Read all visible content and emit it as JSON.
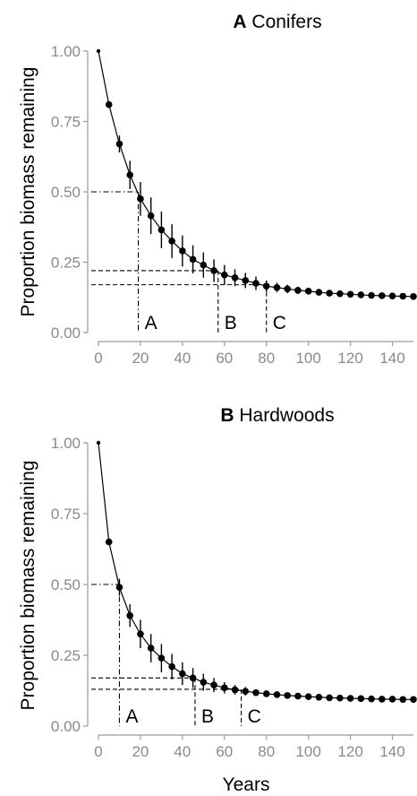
{
  "chart_data": [
    {
      "type": "line",
      "title_letter": "A",
      "title": "Conifers",
      "xlabel": "",
      "ylabel": "Proportion biomass remaining",
      "xlim": [
        0,
        150
      ],
      "ylim": [
        0,
        1
      ],
      "x_ticks": [
        0,
        20,
        40,
        60,
        80,
        100,
        120,
        140
      ],
      "y_ticks": [
        "0.00",
        "0.25",
        "0.50",
        "0.75",
        "1.00"
      ],
      "x": [
        0,
        5,
        10,
        15,
        20,
        25,
        30,
        35,
        40,
        45,
        50,
        55,
        60,
        65,
        70,
        75,
        80,
        85,
        90,
        95,
        100,
        105,
        110,
        115,
        120,
        125,
        130,
        135,
        140,
        145,
        150
      ],
      "y": [
        1.0,
        0.81,
        0.67,
        0.56,
        0.475,
        0.415,
        0.365,
        0.325,
        0.29,
        0.26,
        0.24,
        0.22,
        0.205,
        0.195,
        0.185,
        0.175,
        0.165,
        0.16,
        0.155,
        0.15,
        0.147,
        0.143,
        0.14,
        0.138,
        0.136,
        0.134,
        0.132,
        0.131,
        0.13,
        0.129,
        0.128
      ],
      "error": [
        0,
        0.01,
        0.03,
        0.05,
        0.06,
        0.065,
        0.065,
        0.06,
        0.055,
        0.05,
        0.045,
        0.04,
        0.035,
        0.03,
        0.027,
        0.024,
        0.02,
        0.017,
        0.015,
        0.013,
        0.011,
        0.01,
        0.008,
        0.007,
        0.006,
        0.005,
        0.004,
        0.003,
        0.003,
        0.002,
        0.002
      ],
      "reference_lines": [
        {
          "label": "A",
          "x": 19,
          "y": 0.5,
          "style": "dashdot"
        },
        {
          "label": "B",
          "x": 57,
          "y": 0.22,
          "style": "dash"
        },
        {
          "label": "C",
          "x": 80,
          "y": 0.17,
          "style": "dash"
        }
      ]
    },
    {
      "type": "line",
      "title_letter": "B",
      "title": "Hardwoods",
      "xlabel": "Years",
      "ylabel": "Proportion biomass remaining",
      "xlim": [
        0,
        150
      ],
      "ylim": [
        0,
        1
      ],
      "x_ticks": [
        0,
        20,
        40,
        60,
        80,
        100,
        120,
        140
      ],
      "y_ticks": [
        "0.00",
        "0.25",
        "0.50",
        "0.75",
        "1.00"
      ],
      "x": [
        0,
        5,
        10,
        15,
        20,
        25,
        30,
        35,
        40,
        45,
        50,
        55,
        60,
        65,
        70,
        75,
        80,
        85,
        90,
        95,
        100,
        105,
        110,
        115,
        120,
        125,
        130,
        135,
        140,
        145,
        150
      ],
      "y": [
        1.0,
        0.65,
        0.49,
        0.39,
        0.325,
        0.275,
        0.24,
        0.21,
        0.185,
        0.17,
        0.155,
        0.145,
        0.135,
        0.128,
        0.123,
        0.118,
        0.114,
        0.111,
        0.108,
        0.106,
        0.104,
        0.102,
        0.1,
        0.099,
        0.098,
        0.097,
        0.096,
        0.095,
        0.095,
        0.094,
        0.094
      ],
      "error": [
        0,
        0.01,
        0.03,
        0.04,
        0.05,
        0.05,
        0.05,
        0.045,
        0.04,
        0.035,
        0.03,
        0.025,
        0.02,
        0.017,
        0.015,
        0.012,
        0.01,
        0.008,
        0.006,
        0.005,
        0.004,
        0.004,
        0.003,
        0.003,
        0.002,
        0.002,
        0.002,
        0.002,
        0.002,
        0.002,
        0.002
      ],
      "reference_lines": [
        {
          "label": "A",
          "x": 10,
          "y": 0.5,
          "style": "dashdot"
        },
        {
          "label": "B",
          "x": 46,
          "y": 0.17,
          "style": "dash"
        },
        {
          "label": "C",
          "x": 68,
          "y": 0.13,
          "style": "dash"
        }
      ]
    }
  ]
}
